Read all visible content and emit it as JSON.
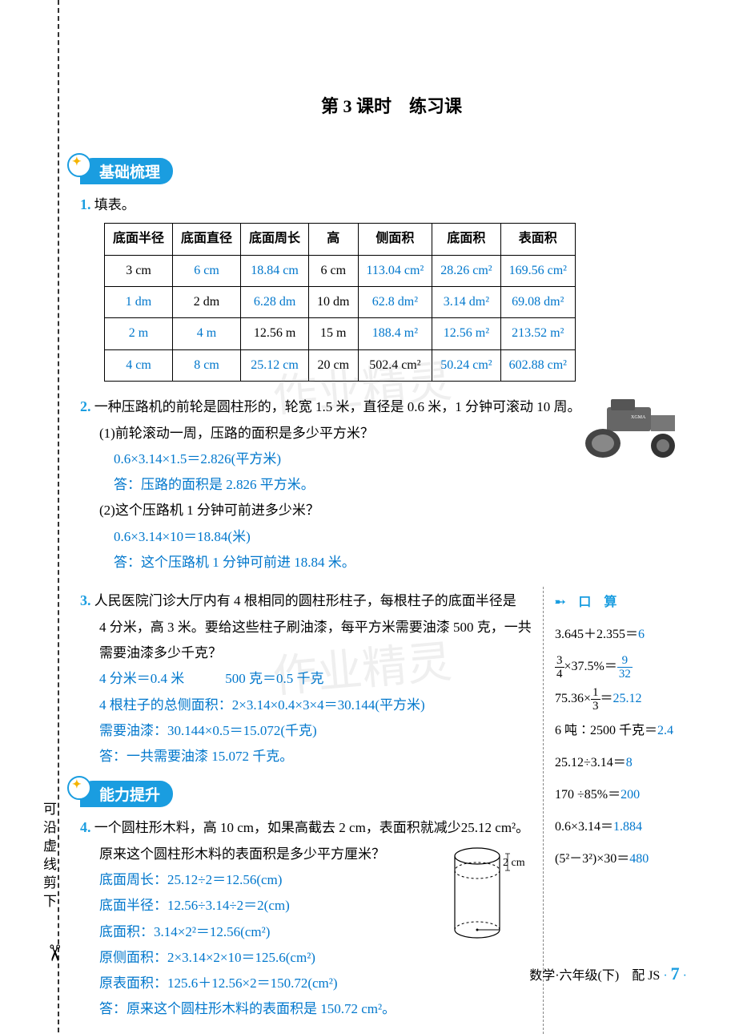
{
  "title": "第 3 课时　练习课",
  "section1": "基础梳理",
  "section2": "能力提升",
  "vertical_note": "可沿虚线剪下",
  "q1": {
    "num": "1.",
    "text": "填表。",
    "headers": [
      "底面半径",
      "底面直径",
      "底面周长",
      "高",
      "侧面积",
      "底面积",
      "表面积"
    ],
    "rows": [
      [
        {
          "t": "3 cm",
          "a": false
        },
        {
          "t": "6 cm",
          "a": true
        },
        {
          "t": "18.84 cm",
          "a": true
        },
        {
          "t": "6 cm",
          "a": false
        },
        {
          "t": "113.04 cm²",
          "a": true
        },
        {
          "t": "28.26 cm²",
          "a": true
        },
        {
          "t": "169.56 cm²",
          "a": true
        }
      ],
      [
        {
          "t": "1 dm",
          "a": true
        },
        {
          "t": "2 dm",
          "a": false
        },
        {
          "t": "6.28 dm",
          "a": true
        },
        {
          "t": "10 dm",
          "a": false
        },
        {
          "t": "62.8 dm²",
          "a": true
        },
        {
          "t": "3.14 dm²",
          "a": true
        },
        {
          "t": "69.08 dm²",
          "a": true
        }
      ],
      [
        {
          "t": "2 m",
          "a": true
        },
        {
          "t": "4 m",
          "a": true
        },
        {
          "t": "12.56 m",
          "a": false
        },
        {
          "t": "15 m",
          "a": false
        },
        {
          "t": "188.4 m²",
          "a": true
        },
        {
          "t": "12.56 m²",
          "a": true
        },
        {
          "t": "213.52 m²",
          "a": true
        }
      ],
      [
        {
          "t": "4 cm",
          "a": true
        },
        {
          "t": "8 cm",
          "a": true
        },
        {
          "t": "25.12 cm",
          "a": true
        },
        {
          "t": "20 cm",
          "a": false
        },
        {
          "t": "502.4 cm²",
          "a": false
        },
        {
          "t": "50.24 cm²",
          "a": true
        },
        {
          "t": "602.88 cm²",
          "a": true
        }
      ]
    ]
  },
  "q2": {
    "num": "2.",
    "stem": "一种压路机的前轮是圆柱形的，轮宽 1.5 米，直径是 0.6 米，1 分钟可滚动 10 周。",
    "p1": "(1)前轮滚动一周，压路的面积是多少平方米？",
    "a1a": "0.6×3.14×1.5＝2.826(平方米)",
    "a1b": "答：压路的面积是 2.826 平方米。",
    "p2": "(2)这个压路机 1 分钟可前进多少米？",
    "a2a": "0.6×3.14×10＝18.84(米)",
    "a2b": "答：这个压路机 1 分钟可前进 18.84 米。"
  },
  "q3": {
    "num": "3.",
    "stem1": "人民医院门诊大厅内有 4 根相同的圆柱形柱子，每根柱子的底面半径是",
    "stem2": "4 分米，高 3 米。要给这些柱子刷油漆，每平方米需要油漆 500 克，一共",
    "stem3": "需要油漆多少千克？",
    "a1": "4 分米＝0.4 米　　　500 克＝0.5 千克",
    "a2": "4 根柱子的总侧面积：2×3.14×0.4×3×4＝30.144(平方米)",
    "a3": "需要油漆：30.144×0.5＝15.072(千克)",
    "a4": "答：一共需要油漆 15.072 千克。"
  },
  "q4": {
    "num": "4.",
    "stem1": "一个圆柱形木料，高 10 cm，如果高截去 2 cm，表面积就减少25.12 cm²。",
    "stem2": "原来这个圆柱形木料的表面积是多少平方厘米？",
    "cyl_label": "2 cm",
    "a1": "底面周长：25.12÷2＝12.56(cm)",
    "a2": "底面半径：12.56÷3.14÷2＝2(cm)",
    "a3": "底面积：3.14×2²＝12.56(cm²)",
    "a4": "原侧面积：2×3.14×2×10＝125.6(cm²)",
    "a5": "原表面积：125.6＋12.56×2＝150.72(cm²)",
    "a6": "答：原来这个圆柱形木料的表面积是 150.72 cm²。"
  },
  "mental": {
    "header": "➸ 口 算",
    "items": [
      {
        "q": "3.645＋2.355＝",
        "a": "6"
      },
      {
        "q_html": "frac34",
        "q2": "×37.5%＝",
        "a_html": "frac932"
      },
      {
        "q": "75.36×",
        "q_html": "frac13",
        "q2": "＝",
        "a": "25.12"
      },
      {
        "q": "6 吨∶2500 千克＝",
        "a": "2.4"
      },
      {
        "q": "25.12÷3.14＝",
        "a": "8"
      },
      {
        "q": "170 ÷85%＝",
        "a": "200"
      },
      {
        "q": "0.6×3.14＝",
        "a": "1.884"
      },
      {
        "q": "(5²－3²)×30＝",
        "a": "480"
      }
    ]
  },
  "footer": {
    "text": "数学·六年级(下)　配 JS",
    "page": "7"
  },
  "colors": {
    "answer": "#0077cc",
    "accent": "#1a9de0"
  }
}
